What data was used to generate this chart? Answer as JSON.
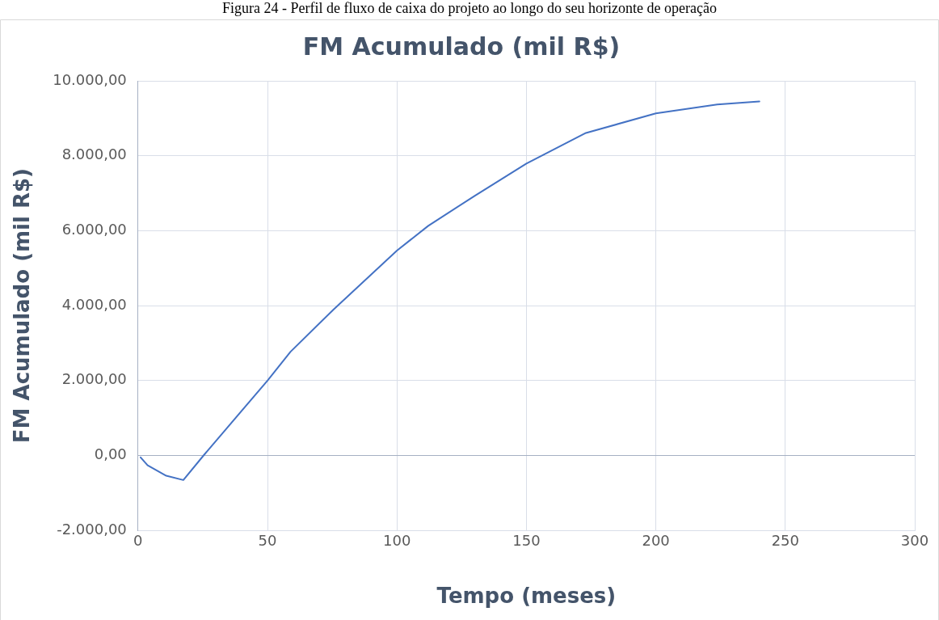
{
  "chart_data": {
    "type": "line",
    "title": "FM Acumulado (mil R$)",
    "xlabel": "Tempo (meses)",
    "ylabel": "FM Acumulado (mil R$)",
    "annotations": [
      "Figura 24 - Perfil de fluxo de caixa do projeto ao longo do seu horizonte de operação"
    ],
    "series": [
      {
        "color": "#4472c4",
        "x": [
          1,
          3.7,
          10.9,
          17.5,
          25.3,
          50,
          58.9,
          75.4,
          100,
          112.1,
          130,
          150,
          173,
          200,
          223.7,
          240
        ],
        "values": [
          -50,
          -260,
          -540,
          -655,
          0,
          2000,
          2770,
          3890,
          5470,
          6130,
          6930,
          7790,
          8610,
          9130,
          9370,
          9450
        ]
      }
    ],
    "xlim": [
      0,
      300
    ],
    "xticks": [
      0,
      50,
      100,
      150,
      200,
      250,
      300
    ],
    "ylim": [
      -2000,
      10000
    ],
    "yticks": [
      {
        "value": -2000,
        "label": "-2.000,00"
      },
      {
        "value": 0,
        "label": "0,00"
      },
      {
        "value": 2000,
        "label": "2.000,00"
      },
      {
        "value": 4000,
        "label": "4.000,00"
      },
      {
        "value": 6000,
        "label": "6.000,00"
      },
      {
        "value": 8000,
        "label": "8.000,00"
      },
      {
        "value": 10000,
        "label": "10.000,00"
      }
    ],
    "grid": true,
    "legend": false,
    "marker": "none",
    "line_style": "solid"
  }
}
